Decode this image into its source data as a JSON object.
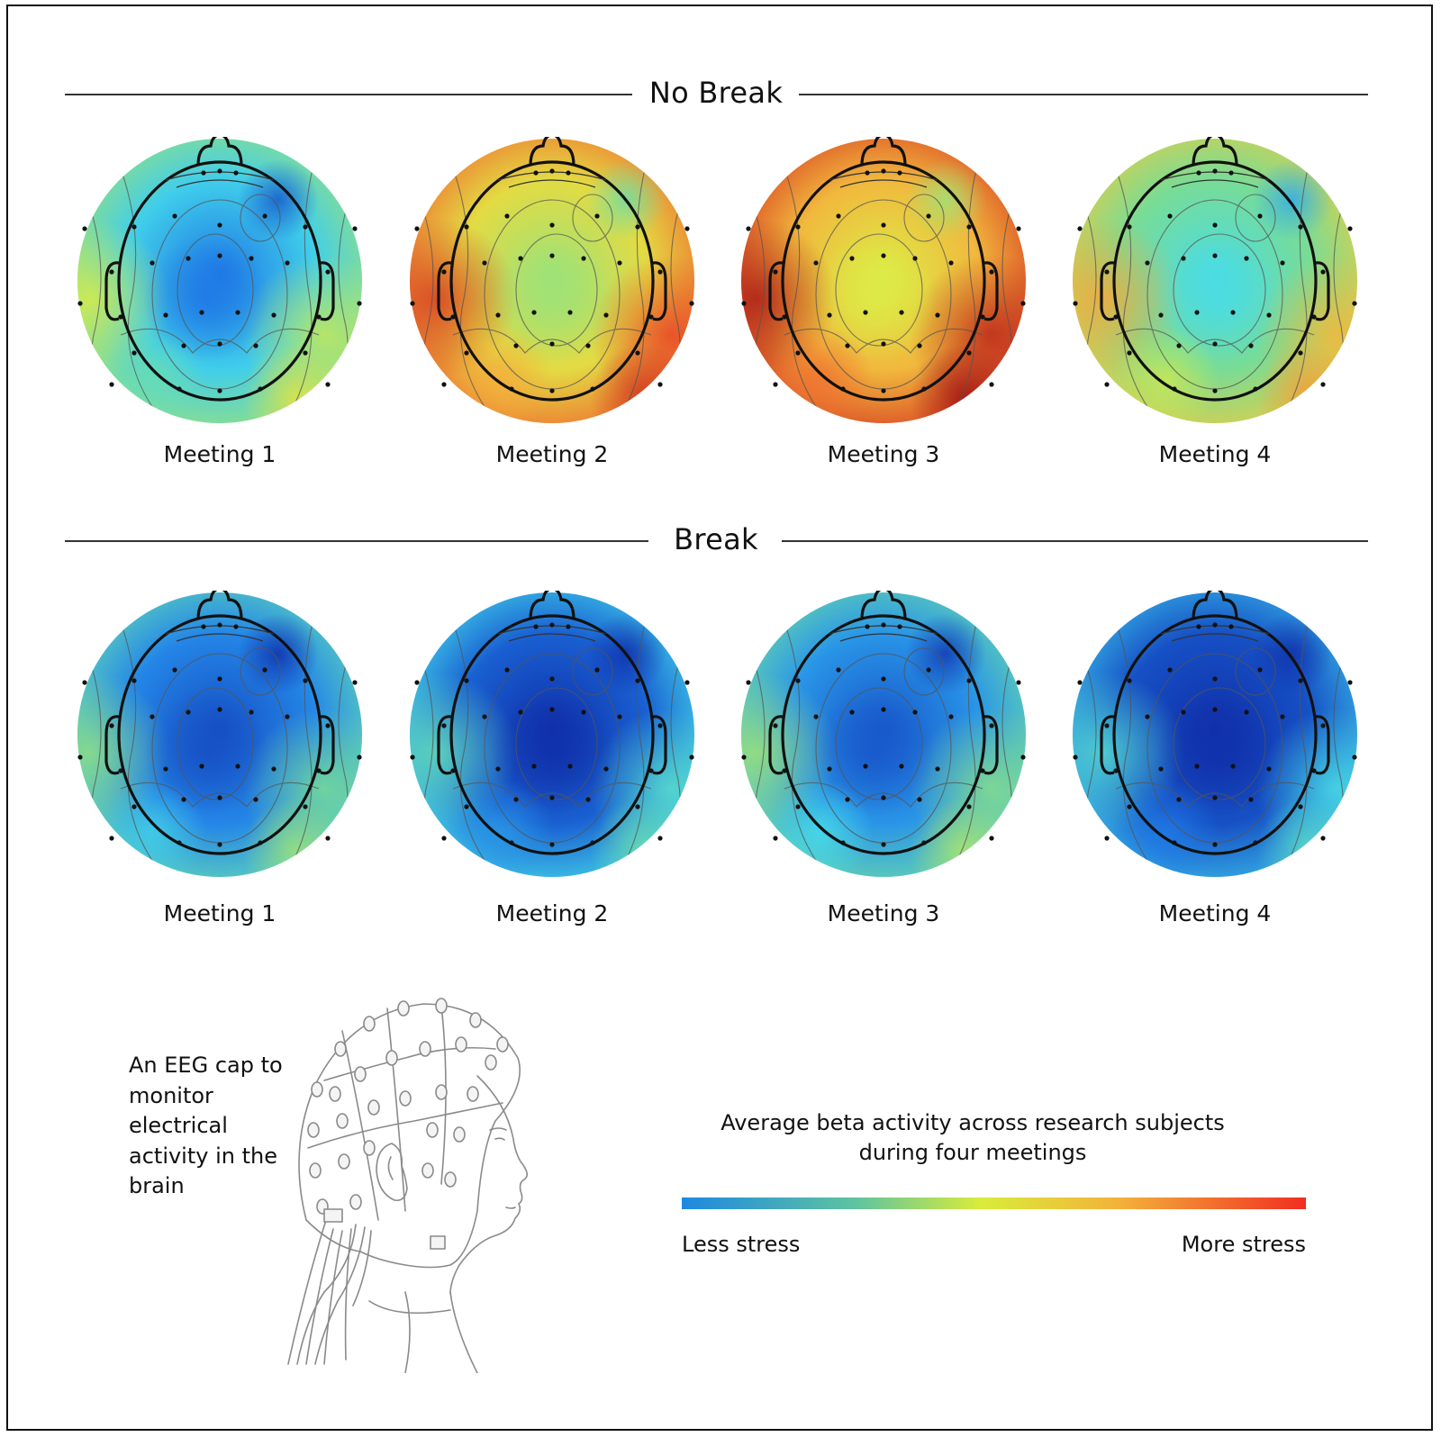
{
  "sections": {
    "no_break": {
      "title": "No Break",
      "meetings": [
        {
          "label": "Meeting 1",
          "stress_level": 0.3
        },
        {
          "label": "Meeting 2",
          "stress_level": 0.62
        },
        {
          "label": "Meeting 3",
          "stress_level": 0.7
        },
        {
          "label": "Meeting 4",
          "stress_level": 0.45
        }
      ]
    },
    "break": {
      "title": "Break",
      "meetings": [
        {
          "label": "Meeting 1",
          "stress_level": 0.2
        },
        {
          "label": "Meeting 2",
          "stress_level": 0.12
        },
        {
          "label": "Meeting 3",
          "stress_level": 0.22
        },
        {
          "label": "Meeting 4",
          "stress_level": 0.08
        }
      ]
    }
  },
  "cap_caption": "An EEG cap to monitor electrical activity in the brain",
  "scale": {
    "title_line1": "Average beta activity across research subjects",
    "title_line2": "during four meetings",
    "left_label": "Less stress",
    "right_label": "More stress"
  },
  "colors": {
    "less_stress": "#1e88e0",
    "mid": "#d9ec3a",
    "more_stress": "#f12e21"
  }
}
